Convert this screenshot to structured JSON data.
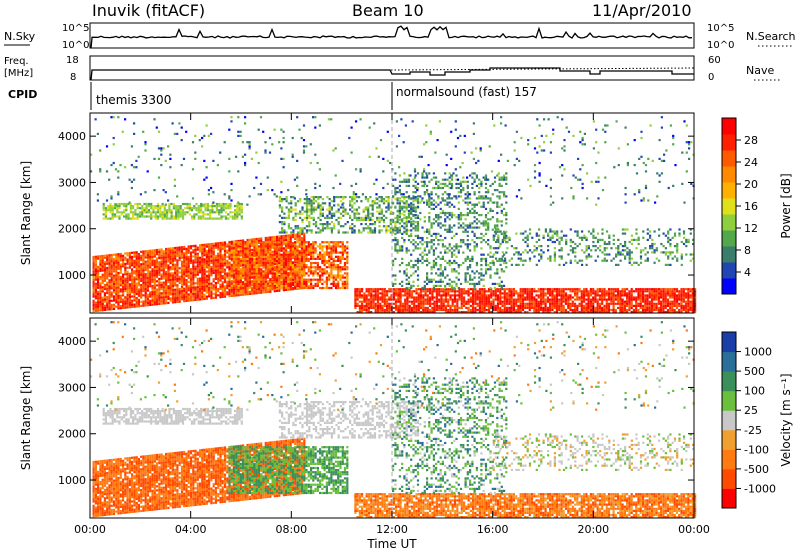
{
  "header": {
    "station": "Inuvik (fitACF)",
    "beam": "Beam 10",
    "date": "11/Apr/2010"
  },
  "top_panels": {
    "nsky_label": "N.Sky",
    "nsearch_label": "N.Search",
    "nsky_ticks": [
      "10^5",
      "10^0"
    ],
    "nsearch_ticks": [
      "10^5",
      "10^0"
    ],
    "freq_label_line1": "Freq.",
    "freq_label_line2": "[MHz]",
    "freq_ticks": [
      "18",
      "8"
    ],
    "nave_label": "Nave",
    "nave_ticks": [
      "60",
      "0"
    ],
    "cpid_label": "CPID",
    "cpid_segments": [
      {
        "label": "themis 3300",
        "start_hour": 0
      },
      {
        "label": "normalsound (fast) 157",
        "start_hour": 12
      }
    ]
  },
  "chart_data": [
    {
      "type": "heatmap",
      "panel": "power",
      "ylabel": "Slant Range [km]",
      "xlabel": "",
      "x_ticks": [
        "00:00",
        "04:00",
        "08:00",
        "12:00",
        "16:00",
        "20:00",
        "00:00"
      ],
      "x_range_hours": [
        0,
        24
      ],
      "y_ticks": [
        1000,
        2000,
        3000,
        4000
      ],
      "y_range_km": [
        180,
        4500
      ],
      "colorbar": {
        "label": "Power [dB]",
        "ticks": [
          "4",
          "8",
          "12",
          "16",
          "20",
          "24",
          "28"
        ],
        "colors": [
          "#0000ff",
          "#2046b4",
          "#3a7d6a",
          "#52a84a",
          "#8fce3c",
          "#e0e01a",
          "#ffb000",
          "#ff8a00",
          "#ff5a00",
          "#ff2000",
          "#ff0000"
        ]
      }
    },
    {
      "type": "heatmap",
      "panel": "velocity",
      "ylabel": "Slant Range [km]",
      "xlabel": "Time UT",
      "x_ticks": [
        "00:00",
        "04:00",
        "08:00",
        "12:00",
        "16:00",
        "20:00",
        "00:00"
      ],
      "x_range_hours": [
        0,
        24
      ],
      "y_ticks": [
        1000,
        2000,
        3000,
        4000
      ],
      "y_range_km": [
        180,
        4500
      ],
      "colorbar": {
        "label": "Velocity [m s⁻¹]",
        "ticks": [
          "1000",
          "500",
          "100",
          "25",
          "-25",
          "-100",
          "-500",
          "-1000"
        ],
        "colors": [
          "#1a3ea8",
          "#2a6e9a",
          "#3a8f5a",
          "#6abf3c",
          "#c8c8c8",
          "#f0a030",
          "#ff7a10",
          "#ff4a00",
          "#ff0000"
        ]
      }
    }
  ]
}
